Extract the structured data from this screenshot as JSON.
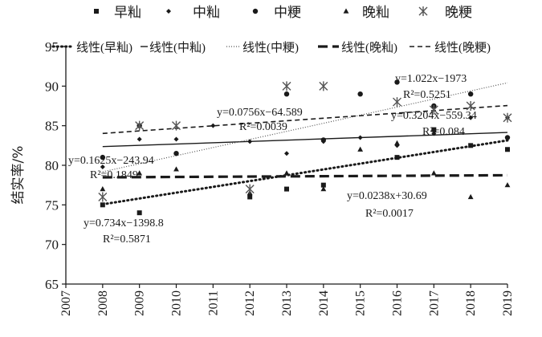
{
  "chart_data": {
    "type": "scatter",
    "ylabel": "结实率/%",
    "xlabel": "",
    "xlim": [
      2007,
      2019
    ],
    "ylim": [
      65,
      95
    ],
    "x_ticks": [
      2007,
      2008,
      2009,
      2010,
      2011,
      2012,
      2013,
      2014,
      2015,
      2016,
      2017,
      2018,
      2019
    ],
    "y_ticks": [
      65,
      70,
      75,
      80,
      85,
      90,
      95
    ],
    "grid": false,
    "legend_position": "top",
    "series": [
      {
        "name": "早籼",
        "marker": "square",
        "color": "#1a1a1a",
        "points": [
          [
            2008,
            75.0
          ],
          [
            2009,
            74.0
          ],
          [
            2012,
            76.0
          ],
          [
            2013,
            77.0
          ],
          [
            2014,
            77.5
          ],
          [
            2016,
            81.0
          ],
          [
            2017,
            84.5
          ],
          [
            2018,
            82.5
          ],
          [
            2019,
            82.0
          ]
        ]
      },
      {
        "name": "中籼",
        "marker": "diamond",
        "color": "#1a1a1a",
        "points": [
          [
            2008,
            79.8
          ],
          [
            2009,
            83.3
          ],
          [
            2010,
            83.3
          ],
          [
            2011,
            85.0
          ],
          [
            2012,
            83.0
          ],
          [
            2013,
            81.5
          ],
          [
            2014,
            83.0
          ],
          [
            2015,
            83.5
          ],
          [
            2016,
            82.5
          ],
          [
            2017,
            84.0
          ],
          [
            2018,
            86.0
          ],
          [
            2019,
            86.0
          ]
        ]
      },
      {
        "name": "中粳",
        "marker": "circle",
        "color": "#1a1a1a",
        "points": [
          [
            2008,
            81.0
          ],
          [
            2009,
            85.0
          ],
          [
            2010,
            81.5
          ],
          [
            2013,
            89.0
          ],
          [
            2014,
            83.2
          ],
          [
            2015,
            89.0
          ],
          [
            2016,
            90.5
          ],
          [
            2017,
            87.5
          ],
          [
            2018,
            89.0
          ],
          [
            2019,
            83.5
          ]
        ]
      },
      {
        "name": "晚籼",
        "marker": "triangle",
        "color": "#1a1a1a",
        "points": [
          [
            2008,
            77.0
          ],
          [
            2009,
            79.0
          ],
          [
            2010,
            79.5
          ],
          [
            2012,
            76.5
          ],
          [
            2013,
            79.0
          ],
          [
            2014,
            77.0
          ],
          [
            2015,
            82.0
          ],
          [
            2016,
            82.8
          ],
          [
            2017,
            79.0
          ],
          [
            2018,
            76.0
          ],
          [
            2019,
            77.5
          ]
        ]
      },
      {
        "name": "晚粳",
        "marker": "asterisk",
        "color": "#1a1a1a",
        "points": [
          [
            2008,
            76.0
          ],
          [
            2009,
            85.0
          ],
          [
            2010,
            85.0
          ],
          [
            2012,
            77.0
          ],
          [
            2013,
            90.0
          ],
          [
            2014,
            90.0
          ],
          [
            2016,
            88.0
          ],
          [
            2017,
            87.0
          ],
          [
            2018,
            87.5
          ],
          [
            2019,
            86.0
          ]
        ]
      }
    ],
    "trendlines": [
      {
        "name": "线性(早籼)",
        "style": "dotted-bold",
        "slope": 0.734,
        "intercept": -1398.8,
        "x_range": [
          2008,
          2019
        ],
        "equation": "y=0.734x−1398.8",
        "r2": "R²=0.5871"
      },
      {
        "name": "线性(中籼)",
        "style": "solid",
        "slope": 0.1625,
        "intercept": -243.94,
        "x_range": [
          2008,
          2019
        ],
        "equation": "y=0.1625x−243.94",
        "r2": "R²=0.1849"
      },
      {
        "name": "线性(中粳)",
        "style": "dotted-fine",
        "slope": 1.022,
        "intercept": -1973,
        "x_range": [
          2008,
          2019
        ],
        "equation": "y=1.022x−1973",
        "r2": "R²=0.5251"
      },
      {
        "name": "线性(晚籼)",
        "style": "dashed-bold",
        "slope": 0.0238,
        "intercept": 30.69,
        "x_range": [
          2008,
          2019
        ],
        "equation": "y=0.0238x+30.69",
        "r2": "R²=0.0017"
      },
      {
        "name": "线性(晚粳)",
        "style": "dashed",
        "slope": 0.3204,
        "intercept": -559.34,
        "x_range": [
          2008,
          2019
        ],
        "equation": "y=0.3204x−559.34",
        "r2": "R²=0.084"
      },
      {
        "name": "",
        "style": "none",
        "slope": 0.0756,
        "intercept": -64.589,
        "x_range": [
          2008,
          2019
        ],
        "equation": "y=0.0756x−64.589",
        "r2": "R²=0.0039"
      }
    ]
  }
}
